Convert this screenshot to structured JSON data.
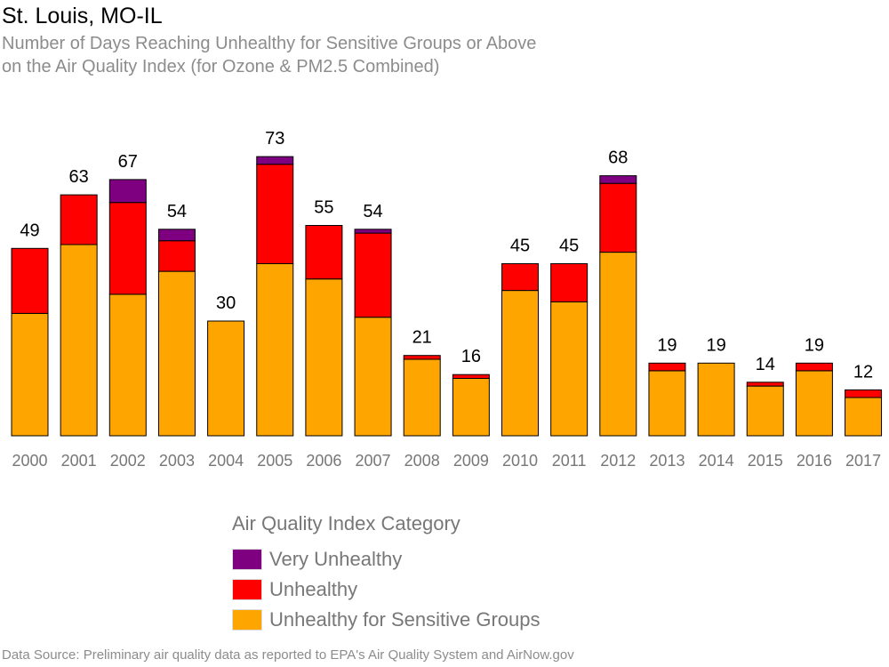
{
  "title": "St. Louis, MO-IL",
  "subtitle_line1": "Number of Days Reaching Unhealthy for Sensitive Groups or Above",
  "subtitle_line2": "on the Air Quality Index (for Ozone & PM2.5 Combined)",
  "legend": {
    "title": "Air Quality Index Category",
    "items": [
      {
        "label": "Very Unhealthy",
        "color": "#7e0080"
      },
      {
        "label": "Unhealthy",
        "color": "#ff0000"
      },
      {
        "label": "Unhealthy for Sensitive Groups",
        "color": "#ffa500"
      }
    ]
  },
  "source": "Data Source: Preliminary air quality data as reported to EPA's Air Quality System and AirNow.gov",
  "chart_data": {
    "type": "bar",
    "stacked": true,
    "categories": [
      "2000",
      "2001",
      "2002",
      "2003",
      "2004",
      "2005",
      "2006",
      "2007",
      "2008",
      "2009",
      "2010",
      "2011",
      "2012",
      "2013",
      "2014",
      "2015",
      "2016",
      "2017"
    ],
    "series": [
      {
        "name": "Unhealthy for Sensitive Groups",
        "color": "#ffa500",
        "values": [
          32,
          50,
          37,
          43,
          30,
          45,
          41,
          31,
          20,
          15,
          38,
          35,
          48,
          17,
          19,
          13,
          17,
          10
        ]
      },
      {
        "name": "Unhealthy",
        "color": "#ff0000",
        "values": [
          17,
          13,
          24,
          8,
          0,
          26,
          14,
          22,
          1,
          1,
          7,
          10,
          18,
          2,
          0,
          1,
          2,
          2
        ]
      },
      {
        "name": "Very Unhealthy",
        "color": "#7e0080",
        "values": [
          0,
          0,
          6,
          3,
          0,
          2,
          0,
          1,
          0,
          0,
          0,
          0,
          2,
          0,
          0,
          0,
          0,
          0
        ]
      }
    ],
    "totals": [
      49,
      63,
      67,
      54,
      30,
      73,
      55,
      54,
      21,
      16,
      45,
      45,
      68,
      19,
      19,
      14,
      19,
      12
    ]
  }
}
